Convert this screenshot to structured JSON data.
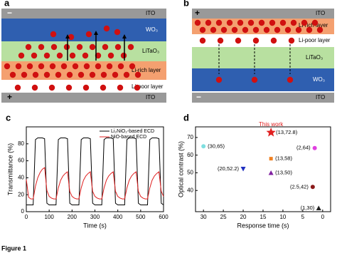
{
  "panels": [
    {
      "label": "a",
      "top_sign": "−",
      "top_electrode": "ITO",
      "layers": [
        "WO₃",
        "LiTaO₃",
        "Li-rich layer",
        "Li-poor layer"
      ],
      "bottom_sign": "+",
      "bottom_electrode": "ITO"
    },
    {
      "label": "b",
      "top_sign": "+",
      "top_electrode": "ITO",
      "layers": [
        "Li-rich layer",
        "Li-poor layer",
        "LiTaO₃",
        "WO₃"
      ],
      "bottom_sign": "−",
      "bottom_electrode": "ITO"
    }
  ],
  "chart_data": [
    {
      "type": "line",
      "label": "c",
      "x_label": "Time (s)",
      "y_label": "Transmittance (%)",
      "x": [
        0,
        10,
        20,
        30,
        40,
        50,
        60,
        70,
        80,
        90,
        100,
        110,
        120,
        130,
        140,
        150,
        160,
        170,
        180,
        190,
        200,
        210,
        220,
        230,
        240,
        250,
        260,
        270,
        280,
        290,
        300,
        310,
        320,
        330,
        340,
        350,
        360,
        370,
        380,
        390,
        400,
        410,
        420,
        430,
        440,
        450,
        460,
        470,
        480,
        490,
        500,
        510,
        520,
        530,
        540,
        550,
        560,
        570,
        580,
        590,
        600
      ],
      "series": [
        {
          "name": "Li₂NiO₂-based ECD",
          "color": "#000000",
          "values": [
            8,
            8,
            8,
            8,
            85,
            87,
            87,
            87,
            86,
            10,
            8,
            8,
            8,
            8,
            85,
            87,
            87,
            87,
            86,
            10,
            8,
            8,
            8,
            8,
            85,
            87,
            87,
            87,
            86,
            10,
            8,
            8,
            8,
            8,
            85,
            87,
            87,
            87,
            86,
            10,
            8,
            8,
            8,
            8,
            85,
            87,
            87,
            87,
            86,
            10,
            8,
            8,
            8,
            8,
            85,
            87,
            87,
            87,
            86,
            10,
            8
          ]
        },
        {
          "name": "NiO-based ECD",
          "color": "#e02020",
          "values": [
            38,
            17,
            15,
            15,
            30,
            40,
            46,
            50,
            52,
            25,
            18,
            16,
            15,
            15,
            28,
            37,
            42,
            45,
            47,
            24,
            18,
            16,
            15,
            15,
            28,
            37,
            42,
            45,
            47,
            24,
            18,
            16,
            15,
            15,
            28,
            37,
            42,
            45,
            47,
            24,
            18,
            16,
            15,
            15,
            28,
            37,
            42,
            45,
            47,
            24,
            18,
            16,
            15,
            15,
            28,
            37,
            42,
            45,
            47,
            24,
            18
          ]
        }
      ],
      "xlim": [
        0,
        600
      ],
      "xticks": [
        0,
        100,
        200,
        300,
        400,
        500,
        600
      ],
      "ylim": [
        0,
        100
      ],
      "yticks": [
        0,
        20,
        40,
        60,
        80
      ]
    },
    {
      "type": "scatter",
      "label": "d",
      "x_label": "Response time (s)",
      "y_label": "Optical contrast (%)",
      "x": [
        30,
        20,
        13,
        13,
        13,
        2,
        2.5,
        1
      ],
      "values": [
        65,
        52.2,
        72.8,
        58,
        50,
        64,
        42,
        30
      ],
      "value_labels": [
        "(30,65)",
        "(20,52.2)",
        "(13,72.8)",
        "(13,58)",
        "(13,50)",
        "(2,64)",
        "(2.5,42)",
        "(1,30)"
      ],
      "colors": [
        "#7fdfe0",
        "#2030c0",
        "#e02020",
        "#f08020",
        "#8020a0",
        "#e040e0",
        "#8b1a1a",
        "#222222"
      ],
      "markers": [
        "circle",
        "triangle-down",
        "star",
        "square",
        "triangle-up",
        "circle",
        "circle",
        "triangle-up"
      ],
      "annotation": "This work",
      "xlim": [
        32,
        -2
      ],
      "xticks": [
        30,
        25,
        20,
        15,
        10,
        5,
        0
      ],
      "ylim": [
        28,
        76
      ],
      "yticks": [
        40,
        50,
        60,
        70
      ]
    }
  ],
  "caption": "Figure 1"
}
